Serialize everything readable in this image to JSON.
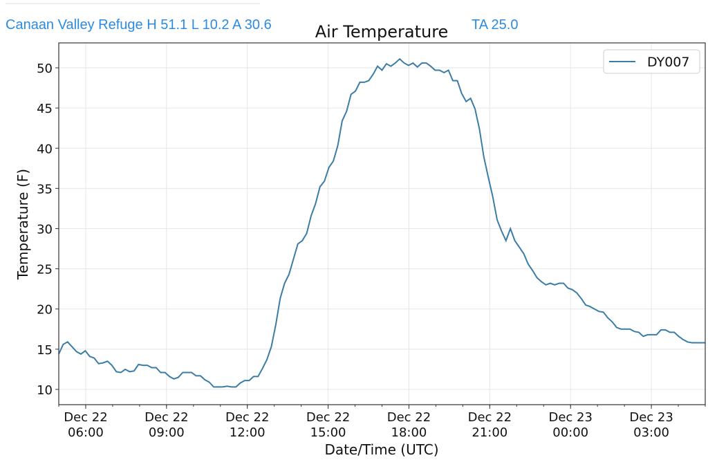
{
  "header": {
    "station": "Canaan Valley Refuge H 51.1 L 10.2 A  30.6",
    "ta": "TA 25.0"
  },
  "chart_data": {
    "type": "line",
    "title": "Air Temperature",
    "xlabel": "Date/Time (UTC)",
    "ylabel": "Temperature (F)",
    "ylim": [
      8.1,
      53.1
    ],
    "x_range_hours": [
      5.0,
      29.0
    ],
    "x_unit": "hours since Dec 22 00:00 UTC",
    "sample_interval_minutes": 10,
    "yticks": [
      10,
      15,
      20,
      25,
      30,
      35,
      40,
      45,
      50
    ],
    "xticks": [
      {
        "h": 6,
        "line1": "Dec 22",
        "line2": "06:00"
      },
      {
        "h": 9,
        "line1": "Dec 22",
        "line2": "09:00"
      },
      {
        "h": 12,
        "line1": "Dec 22",
        "line2": "12:00"
      },
      {
        "h": 15,
        "line1": "Dec 22",
        "line2": "15:00"
      },
      {
        "h": 18,
        "line1": "Dec 22",
        "line2": "18:00"
      },
      {
        "h": 21,
        "line1": "Dec 22",
        "line2": "21:00"
      },
      {
        "h": 24,
        "line1": "Dec 23",
        "line2": "00:00"
      },
      {
        "h": 27,
        "line1": "Dec 23",
        "line2": "03:00"
      }
    ],
    "grid": true,
    "legend": {
      "placement": "top-right",
      "entries": [
        "DY007"
      ]
    },
    "series": [
      {
        "name": "DY007",
        "color": "#3a7ca5",
        "values": [
          14.4,
          15.6,
          15.9,
          15.3,
          14.7,
          14.4,
          14.8,
          14.1,
          13.9,
          13.2,
          13.3,
          13.5,
          13.0,
          12.2,
          12.1,
          12.5,
          12.2,
          12.3,
          13.1,
          13.0,
          13.0,
          12.7,
          12.7,
          12.1,
          12.1,
          11.6,
          11.3,
          11.5,
          12.1,
          12.1,
          12.1,
          11.7,
          11.7,
          11.2,
          10.9,
          10.3,
          10.3,
          10.3,
          10.4,
          10.3,
          10.3,
          10.8,
          11.1,
          11.1,
          11.6,
          11.6,
          12.6,
          13.7,
          15.3,
          18.0,
          21.3,
          23.2,
          24.3,
          26.2,
          28.1,
          28.5,
          29.4,
          31.6,
          33.1,
          35.2,
          35.9,
          37.6,
          38.4,
          40.3,
          43.4,
          44.6,
          46.7,
          47.1,
          48.2,
          48.2,
          48.4,
          49.2,
          50.2,
          49.7,
          50.5,
          50.2,
          50.6,
          51.1,
          50.6,
          50.3,
          50.6,
          50.1,
          50.6,
          50.6,
          50.2,
          49.7,
          49.7,
          49.4,
          49.7,
          48.4,
          48.4,
          46.8,
          45.8,
          46.2,
          44.9,
          42.4,
          38.9,
          36.4,
          34.0,
          31.1,
          29.7,
          28.5,
          30.0,
          28.5,
          27.7,
          26.9,
          25.6,
          24.8,
          23.9,
          23.4,
          23.0,
          23.2,
          23.0,
          23.2,
          23.2,
          22.6,
          22.4,
          22.0,
          21.3,
          20.5,
          20.3,
          20.0,
          19.7,
          19.6,
          18.9,
          18.4,
          17.7,
          17.5,
          17.5,
          17.5,
          17.2,
          17.1,
          16.6,
          16.8,
          16.8,
          16.8,
          17.4,
          17.4,
          17.1,
          17.1,
          16.6,
          16.2,
          15.9,
          15.8,
          15.8,
          15.8,
          15.8
        ]
      }
    ]
  }
}
